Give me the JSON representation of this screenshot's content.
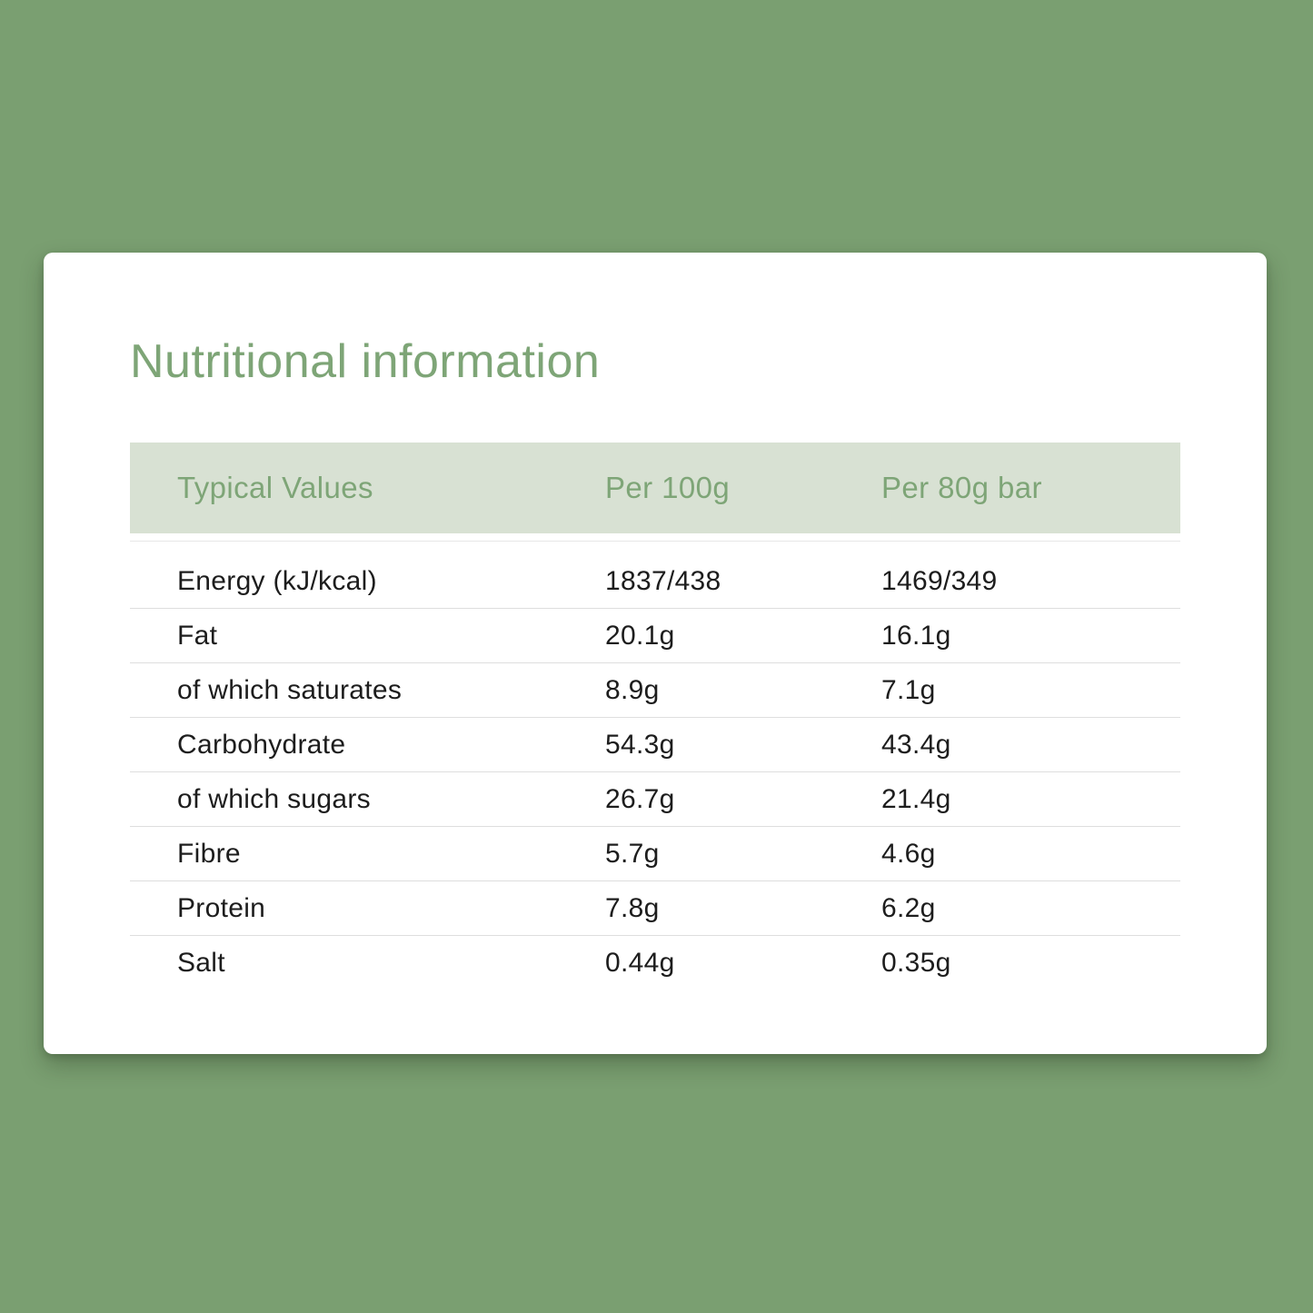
{
  "title": "Nutritional information",
  "table": {
    "headers": [
      "Typical Values",
      "Per 100g",
      "Per 80g bar"
    ],
    "rows": [
      {
        "label": "Energy (kJ/kcal)",
        "per_100g": "1837/438",
        "per_80g_bar": "1469/349"
      },
      {
        "label": "Fat",
        "per_100g": "20.1g",
        "per_80g_bar": "16.1g"
      },
      {
        "label": "of which saturates",
        "per_100g": "8.9g",
        "per_80g_bar": "7.1g"
      },
      {
        "label": "Carbohydrate",
        "per_100g": "54.3g",
        "per_80g_bar": "43.4g"
      },
      {
        "label": "of which sugars",
        "per_100g": "26.7g",
        "per_80g_bar": "21.4g"
      },
      {
        "label": "Fibre",
        "per_100g": "5.7g",
        "per_80g_bar": "4.6g"
      },
      {
        "label": "Protein",
        "per_100g": "7.8g",
        "per_80g_bar": "6.2g"
      },
      {
        "label": "Salt",
        "per_100g": "0.44g",
        "per_80g_bar": "0.35g"
      }
    ]
  },
  "colors": {
    "page_background": "#7a9f71",
    "card_background": "#ffffff",
    "accent_green_text": "#7ea577",
    "header_band_background": "#d8e1d3",
    "body_text": "#1d1d1d",
    "row_divider": "#dedede"
  }
}
